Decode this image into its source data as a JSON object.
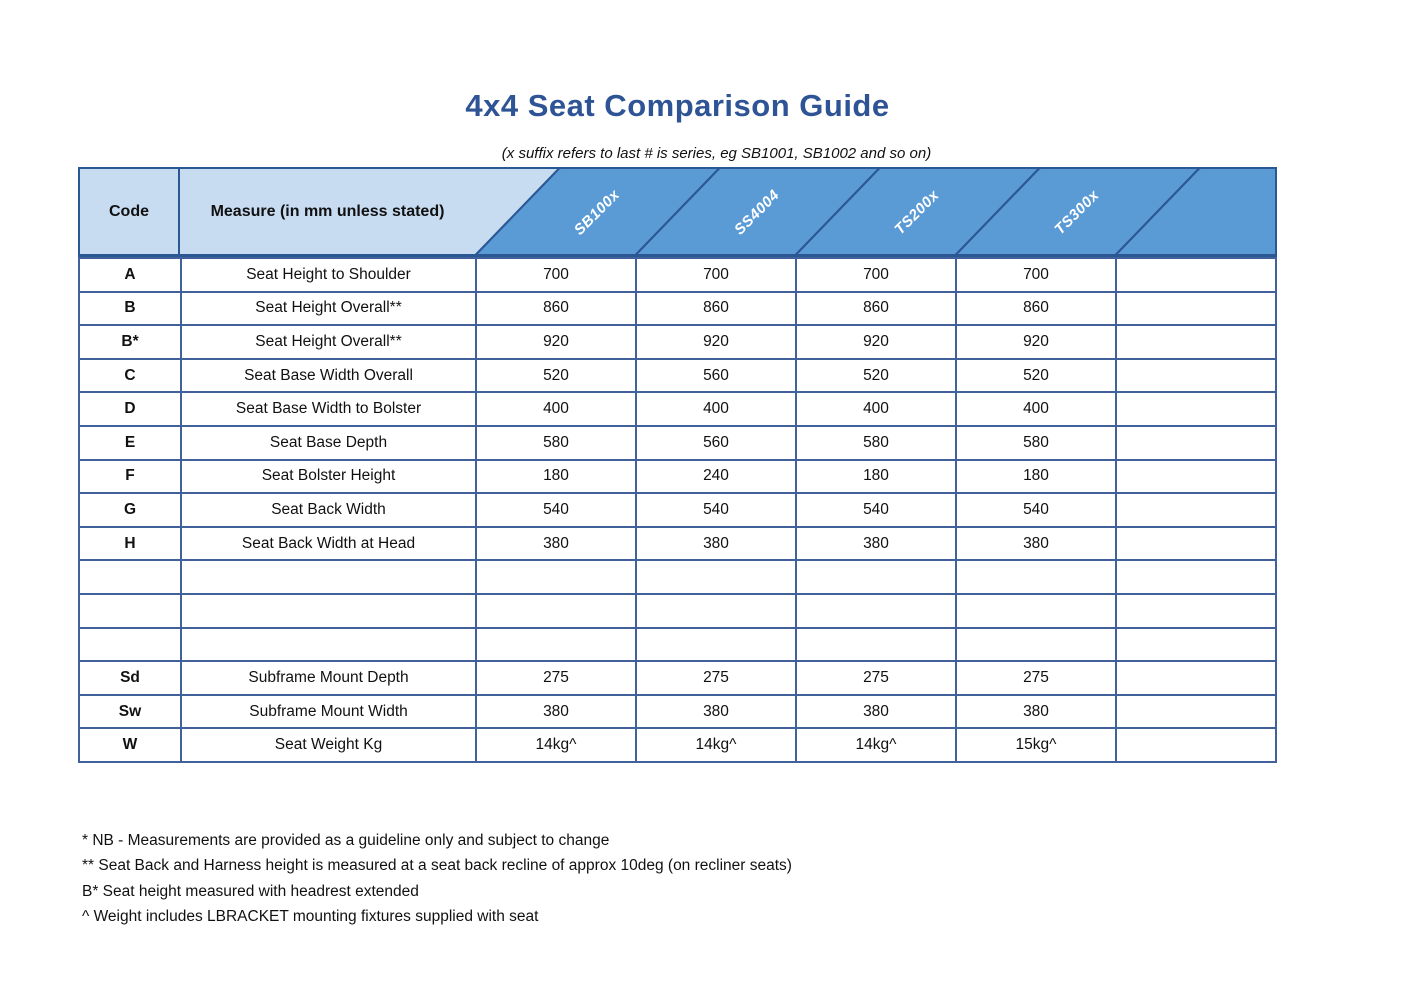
{
  "title": "4x4 Seat Comparison Guide",
  "subtitle": "(x suffix refers to last # is series, eg SB1001, SB1002 and so on)",
  "table": {
    "code_header": "Code",
    "measure_header": "Measure (in mm unless stated)",
    "products": [
      "SB100x",
      "SS4004",
      "TS200x",
      "TS300x"
    ],
    "rows": [
      {
        "code": "A",
        "measure": "Seat Height to Shoulder",
        "values": [
          "700",
          "700",
          "700",
          "700",
          ""
        ]
      },
      {
        "code": "B",
        "measure": "Seat Height Overall**",
        "values": [
          "860",
          "860",
          "860",
          "860",
          ""
        ]
      },
      {
        "code": "B*",
        "measure": "Seat Height Overall**",
        "values": [
          "920",
          "920",
          "920",
          "920",
          ""
        ]
      },
      {
        "code": "C",
        "measure": "Seat Base Width Overall",
        "values": [
          "520",
          "560",
          "520",
          "520",
          ""
        ]
      },
      {
        "code": "D",
        "measure": "Seat Base Width to Bolster",
        "values": [
          "400",
          "400",
          "400",
          "400",
          ""
        ]
      },
      {
        "code": "E",
        "measure": "Seat Base Depth",
        "values": [
          "580",
          "560",
          "580",
          "580",
          ""
        ]
      },
      {
        "code": "F",
        "measure": "Seat Bolster Height",
        "values": [
          "180",
          "240",
          "180",
          "180",
          ""
        ]
      },
      {
        "code": "G",
        "measure": "Seat Back Width",
        "values": [
          "540",
          "540",
          "540",
          "540",
          ""
        ]
      },
      {
        "code": "H",
        "measure": "Seat Back Width at Head",
        "values": [
          "380",
          "380",
          "380",
          "380",
          ""
        ]
      },
      {
        "code": "",
        "measure": "",
        "values": [
          "",
          "",
          "",
          "",
          ""
        ]
      },
      {
        "code": "",
        "measure": "",
        "values": [
          "",
          "",
          "",
          "",
          ""
        ]
      },
      {
        "code": "",
        "measure": "",
        "values": [
          "",
          "",
          "",
          "",
          ""
        ]
      },
      {
        "code": "Sd",
        "measure": "Subframe Mount Depth",
        "values": [
          "275",
          "275",
          "275",
          "275",
          ""
        ]
      },
      {
        "code": "Sw",
        "measure": "Subframe Mount Width",
        "values": [
          "380",
          "380",
          "380",
          "380",
          ""
        ]
      },
      {
        "code": "W",
        "measure": "Seat Weight Kg",
        "values": [
          "14kg^",
          "14kg^",
          "14kg^",
          "15kg^",
          ""
        ]
      }
    ]
  },
  "footnotes": [
    "* NB - Measurements are provided as a guideline only and subject to change",
    "** Seat Back and Harness height is measured at a seat back recline of approx 10deg (on recliner seats)",
    "B* Seat height measured with headrest extended",
    "^ Weight includes LBRACKET mounting fixtures supplied with seat"
  ],
  "colors": {
    "title": "#2e5496",
    "header_light_blue": "#c7dcf1",
    "header_dark_blue": "#5b9bd5",
    "line_navy": "#2b5794",
    "cell_border": "#41619b",
    "text": "#111111"
  }
}
